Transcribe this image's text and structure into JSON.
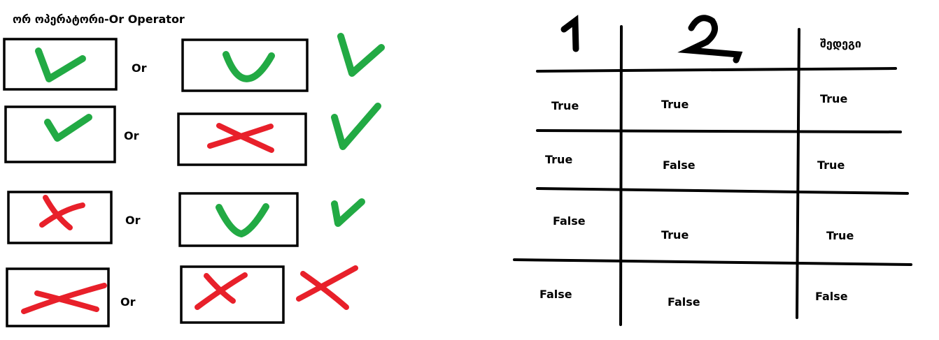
{
  "title": "ორ ოპერატორი-Or Operator",
  "operator_label": "Or",
  "rows": [
    {
      "a": "check",
      "b": "check",
      "result": "check"
    },
    {
      "a": "check",
      "b": "cross",
      "result": "check"
    },
    {
      "a": "cross",
      "b": "check",
      "result": "check"
    },
    {
      "a": "cross",
      "b": "cross",
      "result": "cross"
    }
  ],
  "table": {
    "headers": [
      "1",
      "2",
      "შედეგი"
    ],
    "rows": [
      [
        "True",
        "True",
        "True"
      ],
      [
        "True",
        "False",
        "True"
      ],
      [
        "False",
        "True",
        "True"
      ],
      [
        "False",
        "False",
        "False"
      ]
    ]
  },
  "colors": {
    "check": "#22aa44",
    "cross": "#e8202a"
  },
  "icons": {
    "check": "check-icon",
    "cross": "cross-icon"
  }
}
